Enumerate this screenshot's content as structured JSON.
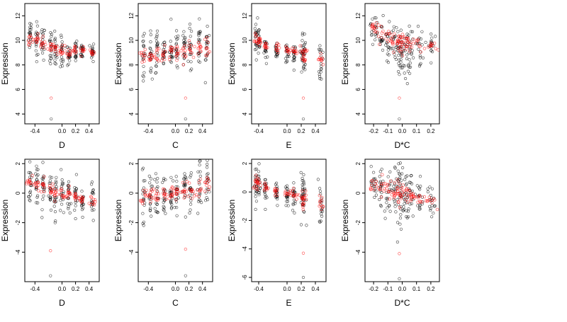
{
  "figure": {
    "layout": "2x4 grid of scatter panels",
    "colors": {
      "observed": "#000000",
      "fitted": "#ff0000",
      "background": "#ffffff"
    }
  },
  "chart_data": [
    {
      "type": "scatter",
      "panel": "top-1",
      "xlabel": "D",
      "ylabel": "Expression",
      "xlim": [
        -0.55,
        0.55
      ],
      "ylim": [
        3.2,
        13.0
      ],
      "xticks": [
        -0.4,
        0.0,
        0.2,
        0.4
      ],
      "yticks": [
        4,
        6,
        8,
        10,
        12
      ],
      "fit_trend": {
        "x": [
          -0.5,
          0.4
        ],
        "y": [
          10.0,
          9.0
        ]
      },
      "clusters": [
        {
          "x": -0.47,
          "y": 10.4,
          "spread": 0.7
        },
        {
          "x": -0.37,
          "y": 10.1,
          "spread": 0.7
        },
        {
          "x": -0.28,
          "y": 9.8,
          "spread": 0.7
        },
        {
          "x": -0.17,
          "y": 9.3,
          "spread": 0.8
        },
        {
          "x": -0.1,
          "y": 9.0,
          "spread": 0.7
        },
        {
          "x": 0.0,
          "y": 8.9,
          "spread": 0.7
        },
        {
          "x": 0.1,
          "y": 8.8,
          "spread": 0.6
        },
        {
          "x": 0.2,
          "y": 9.2,
          "spread": 0.5
        },
        {
          "x": 0.3,
          "y": 9.2,
          "spread": 0.4
        },
        {
          "x": 0.45,
          "y": 9.1,
          "spread": 0.4
        }
      ],
      "outliers": [
        {
          "x": -0.16,
          "y": 5.3,
          "series": "fitted"
        },
        {
          "x": -0.16,
          "y": 3.6,
          "series": "observed"
        }
      ]
    },
    {
      "type": "scatter",
      "panel": "top-2",
      "xlabel": "C",
      "ylabel": "Expression",
      "xlim": [
        -0.55,
        0.55
      ],
      "ylim": [
        3.2,
        13.0
      ],
      "xticks": [
        -0.4,
        0.0,
        0.2,
        0.4
      ],
      "yticks": [
        4,
        6,
        8,
        10,
        12
      ],
      "fit_trend": {
        "x": [
          -0.5,
          0.5
        ],
        "y": [
          8.6,
          9.4
        ]
      },
      "clusters": [
        {
          "x": -0.47,
          "y": 8.8,
          "spread": 0.8
        },
        {
          "x": -0.37,
          "y": 8.9,
          "spread": 0.8
        },
        {
          "x": -0.27,
          "y": 9.0,
          "spread": 0.9
        },
        {
          "x": -0.17,
          "y": 9.0,
          "spread": 0.8
        },
        {
          "x": -0.06,
          "y": 9.1,
          "spread": 0.8
        },
        {
          "x": 0.02,
          "y": 9.1,
          "spread": 0.8
        },
        {
          "x": 0.13,
          "y": 9.2,
          "spread": 0.8
        },
        {
          "x": 0.22,
          "y": 9.2,
          "spread": 1.0
        },
        {
          "x": 0.35,
          "y": 9.3,
          "spread": 1.0
        },
        {
          "x": 0.47,
          "y": 9.6,
          "spread": 1.2
        }
      ],
      "outliers": [
        {
          "x": 0.15,
          "y": 5.3,
          "series": "fitted"
        },
        {
          "x": 0.15,
          "y": 3.6,
          "series": "observed"
        }
      ]
    },
    {
      "type": "scatter",
      "panel": "top-3",
      "xlabel": "E",
      "ylabel": "Expression",
      "xlim": [
        -0.5,
        0.55
      ],
      "ylim": [
        3.2,
        13.0
      ],
      "xticks": [
        -0.4,
        0.0,
        0.2,
        0.4
      ],
      "yticks": [
        4,
        6,
        8,
        10,
        12
      ],
      "fit_trend": {
        "x": [
          -0.45,
          0.5
        ],
        "y": [
          10.2,
          8.4
        ]
      },
      "clusters": [
        {
          "x": -0.44,
          "y": 10.2,
          "spread": 0.8
        },
        {
          "x": -0.4,
          "y": 9.7,
          "spread": 0.7
        },
        {
          "x": -0.3,
          "y": 9.2,
          "spread": 0.6
        },
        {
          "x": -0.15,
          "y": 9.1,
          "spread": 0.5
        },
        {
          "x": 0.0,
          "y": 9.0,
          "spread": 0.5
        },
        {
          "x": 0.1,
          "y": 9.0,
          "spread": 0.5
        },
        {
          "x": 0.22,
          "y": 8.9,
          "spread": 0.9
        },
        {
          "x": 0.24,
          "y": 8.9,
          "spread": 0.9
        },
        {
          "x": 0.48,
          "y": 8.4,
          "spread": 0.8
        }
      ],
      "outliers": [
        {
          "x": 0.23,
          "y": 5.3,
          "series": "fitted"
        },
        {
          "x": 0.23,
          "y": 3.6,
          "series": "observed"
        }
      ]
    },
    {
      "type": "scatter",
      "panel": "top-4",
      "xlabel": "D*C",
      "ylabel": "Expression",
      "xlim": [
        -0.26,
        0.26
      ],
      "ylim": [
        3.2,
        13.0
      ],
      "xticks": [
        -0.2,
        -0.1,
        0.0,
        0.1,
        0.2
      ],
      "yticks": [
        4,
        6,
        8,
        10,
        12
      ],
      "fit_trend": {
        "x": [
          -0.22,
          0.23
        ],
        "y": [
          11.4,
          9.4
        ]
      },
      "clusters": [
        {
          "x": -0.2,
          "y": 11.0,
          "spread": 0.6
        },
        {
          "x": -0.15,
          "y": 10.2,
          "spread": 0.9
        },
        {
          "x": -0.1,
          "y": 9.6,
          "spread": 0.9
        },
        {
          "x": -0.05,
          "y": 9.2,
          "spread": 1.0
        },
        {
          "x": -0.02,
          "y": 9.0,
          "spread": 1.1
        },
        {
          "x": 0.0,
          "y": 9.0,
          "spread": 1.2
        },
        {
          "x": 0.03,
          "y": 9.1,
          "spread": 1.0
        },
        {
          "x": 0.06,
          "y": 9.2,
          "spread": 0.9
        },
        {
          "x": 0.12,
          "y": 9.4,
          "spread": 0.8
        },
        {
          "x": 0.2,
          "y": 9.6,
          "spread": 0.6
        }
      ],
      "outliers": [
        {
          "x": -0.02,
          "y": 5.3,
          "series": "fitted"
        },
        {
          "x": -0.02,
          "y": 3.6,
          "series": "observed"
        }
      ]
    },
    {
      "type": "scatter",
      "panel": "bottom-1",
      "xlabel": "D",
      "ylabel": "Expression",
      "xlim": [
        -0.55,
        0.55
      ],
      "ylim": [
        -6.0,
        2.3
      ],
      "xticks": [
        -0.4,
        0.0,
        0.2,
        0.4
      ],
      "yticks": [
        -4,
        -2,
        0,
        2
      ],
      "fit_trend": {
        "x": [
          -0.5,
          0.5
        ],
        "y": [
          0.7,
          -0.6
        ]
      },
      "clusters": [
        {
          "x": -0.47,
          "y": 0.8,
          "spread": 0.6
        },
        {
          "x": -0.37,
          "y": 0.5,
          "spread": 0.7
        },
        {
          "x": -0.28,
          "y": 0.4,
          "spread": 0.7
        },
        {
          "x": -0.17,
          "y": 0.0,
          "spread": 0.8
        },
        {
          "x": -0.1,
          "y": -0.1,
          "spread": 0.8
        },
        {
          "x": 0.0,
          "y": -0.2,
          "spread": 0.8
        },
        {
          "x": 0.1,
          "y": -0.2,
          "spread": 0.7
        },
        {
          "x": 0.2,
          "y": -0.3,
          "spread": 0.6
        },
        {
          "x": 0.3,
          "y": -0.4,
          "spread": 0.5
        },
        {
          "x": 0.45,
          "y": -0.6,
          "spread": 0.5
        }
      ],
      "outliers": [
        {
          "x": -0.17,
          "y": -3.9,
          "series": "fitted"
        },
        {
          "x": -0.17,
          "y": -5.6,
          "series": "observed"
        }
      ]
    },
    {
      "type": "scatter",
      "panel": "bottom-2",
      "xlabel": "C",
      "ylabel": "Expression",
      "xlim": [
        -0.55,
        0.55
      ],
      "ylim": [
        -6.0,
        2.3
      ],
      "xticks": [
        -0.4,
        0.0,
        0.2,
        0.4
      ],
      "yticks": [
        -4,
        -2,
        0,
        2
      ],
      "fit_trend": {
        "x": [
          -0.5,
          0.5
        ],
        "y": [
          -0.4,
          0.5
        ]
      },
      "clusters": [
        {
          "x": -0.47,
          "y": -0.4,
          "spread": 0.8
        },
        {
          "x": -0.37,
          "y": -0.2,
          "spread": 0.8
        },
        {
          "x": -0.27,
          "y": -0.1,
          "spread": 0.8
        },
        {
          "x": -0.17,
          "y": -0.1,
          "spread": 0.7
        },
        {
          "x": -0.06,
          "y": 0.0,
          "spread": 0.7
        },
        {
          "x": 0.02,
          "y": 0.1,
          "spread": 0.7
        },
        {
          "x": 0.13,
          "y": 0.1,
          "spread": 0.8
        },
        {
          "x": 0.22,
          "y": 0.2,
          "spread": 0.9
        },
        {
          "x": 0.35,
          "y": 0.3,
          "spread": 0.9
        },
        {
          "x": 0.47,
          "y": 0.5,
          "spread": 1.0
        }
      ],
      "outliers": [
        {
          "x": 0.15,
          "y": -3.8,
          "series": "fitted"
        },
        {
          "x": 0.15,
          "y": -5.6,
          "series": "observed"
        }
      ]
    },
    {
      "type": "scatter",
      "panel": "bottom-3",
      "xlabel": "E",
      "ylabel": "Expression",
      "xlim": [
        -0.5,
        0.55
      ],
      "ylim": [
        -6.3,
        2.3
      ],
      "xticks": [
        -0.4,
        0.0,
        0.2,
        0.4
      ],
      "yticks": [
        -6,
        -4,
        -2,
        0,
        2
      ],
      "fit_trend": {
        "x": [
          -0.45,
          0.5
        ],
        "y": [
          0.7,
          -0.8
        ]
      },
      "clusters": [
        {
          "x": -0.44,
          "y": 0.7,
          "spread": 0.8
        },
        {
          "x": -0.4,
          "y": 0.5,
          "spread": 0.7
        },
        {
          "x": -0.3,
          "y": 0.2,
          "spread": 0.6
        },
        {
          "x": -0.15,
          "y": 0.0,
          "spread": 0.5
        },
        {
          "x": 0.0,
          "y": -0.1,
          "spread": 0.5
        },
        {
          "x": 0.1,
          "y": -0.2,
          "spread": 0.5
        },
        {
          "x": 0.22,
          "y": -0.4,
          "spread": 0.9
        },
        {
          "x": 0.24,
          "y": -0.4,
          "spread": 0.9
        },
        {
          "x": 0.48,
          "y": -0.8,
          "spread": 0.8
        }
      ],
      "outliers": [
        {
          "x": 0.23,
          "y": -4.3,
          "series": "fitted"
        },
        {
          "x": 0.23,
          "y": -6.0,
          "series": "observed"
        }
      ]
    },
    {
      "type": "scatter",
      "panel": "bottom-4",
      "xlabel": "D*C",
      "ylabel": "Expression",
      "xlim": [
        -0.26,
        0.26
      ],
      "ylim": [
        -6.0,
        2.3
      ],
      "xticks": [
        -0.2,
        -0.1,
        0.0,
        0.1,
        0.2
      ],
      "yticks": [
        -4,
        -2,
        0,
        2
      ],
      "fit_trend": {
        "x": [
          -0.22,
          0.23
        ],
        "y": [
          0.5,
          -0.6
        ]
      },
      "clusters": [
        {
          "x": -0.2,
          "y": 0.5,
          "spread": 0.6
        },
        {
          "x": -0.15,
          "y": 0.4,
          "spread": 0.8
        },
        {
          "x": -0.1,
          "y": 0.2,
          "spread": 0.8
        },
        {
          "x": -0.05,
          "y": 0.1,
          "spread": 1.0
        },
        {
          "x": -0.02,
          "y": 0.0,
          "spread": 1.1
        },
        {
          "x": 0.0,
          "y": -0.1,
          "spread": 1.1
        },
        {
          "x": 0.03,
          "y": -0.1,
          "spread": 1.0
        },
        {
          "x": 0.06,
          "y": -0.2,
          "spread": 0.9
        },
        {
          "x": 0.12,
          "y": -0.3,
          "spread": 0.7
        },
        {
          "x": 0.2,
          "y": -0.5,
          "spread": 0.6
        }
      ],
      "outliers": [
        {
          "x": -0.02,
          "y": -4.1,
          "series": "fitted"
        },
        {
          "x": -0.02,
          "y": -5.8,
          "series": "observed"
        }
      ]
    }
  ]
}
